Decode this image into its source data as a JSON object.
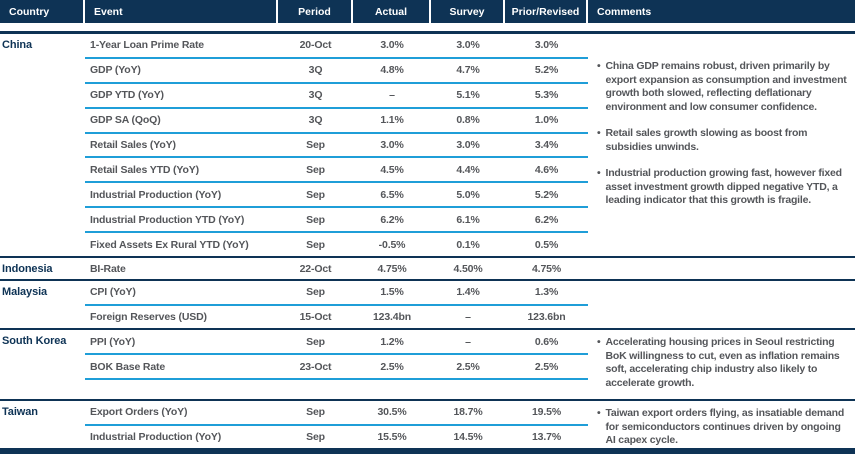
{
  "colors": {
    "navy": "#0e3355",
    "rule_blue": "#1f9ed8",
    "text_gray": "#54565a",
    "header_text": "#ffffff"
  },
  "bullet_glyph": "•",
  "table": {
    "columns": [
      {
        "key": "country",
        "label": "Country"
      },
      {
        "key": "event",
        "label": "Event"
      },
      {
        "key": "period",
        "label": "Period"
      },
      {
        "key": "actual",
        "label": "Actual"
      },
      {
        "key": "survey",
        "label": "Survey"
      },
      {
        "key": "prior",
        "label": "Prior/Revised"
      },
      {
        "key": "comments",
        "label": "Comments"
      }
    ],
    "sections": [
      {
        "country": "China",
        "trailing_rule": false,
        "rows": [
          {
            "event": "1-Year Loan Prime Rate",
            "period": "20-Oct",
            "actual": "3.0%",
            "survey": "3.0%",
            "prior": "3.0%"
          },
          {
            "event": "GDP (YoY)",
            "period": "3Q",
            "actual": "4.8%",
            "survey": "4.7%",
            "prior": "5.2%"
          },
          {
            "event": "GDP YTD (YoY)",
            "period": "3Q",
            "actual": "–",
            "survey": "5.1%",
            "prior": "5.3%"
          },
          {
            "event": "GDP SA (QoQ)",
            "period": "3Q",
            "actual": "1.1%",
            "survey": "0.8%",
            "prior": "1.0%"
          },
          {
            "event": "Retail Sales (YoY)",
            "period": "Sep",
            "actual": "3.0%",
            "survey": "3.0%",
            "prior": "3.4%"
          },
          {
            "event": "Retail Sales YTD (YoY)",
            "period": "Sep",
            "actual": "4.5%",
            "survey": "4.4%",
            "prior": "4.6%"
          },
          {
            "event": "Industrial Production (YoY)",
            "period": "Sep",
            "actual": "6.5%",
            "survey": "5.0%",
            "prior": "5.2%"
          },
          {
            "event": "Industrial Production YTD (YoY)",
            "period": "Sep",
            "actual": "6.2%",
            "survey": "6.1%",
            "prior": "6.2%"
          },
          {
            "event": "Fixed Assets Ex Rural YTD (YoY)",
            "period": "Sep",
            "actual": "-0.5%",
            "survey": "0.1%",
            "prior": "0.5%"
          }
        ],
        "comments": [
          "China GDP remains robust, driven primarily by export expansion as consumption and investment growth both slowed, reflecting deflationary environment and low consumer confidence.",
          "Retail sales growth slowing as boost from subsidies unwinds.",
          "Industrial production growing fast, however fixed asset investment growth dipped negative YTD, a leading indicator that this growth is fragile."
        ]
      },
      {
        "country": "Indonesia",
        "trailing_rule": false,
        "rows": [
          {
            "event": "BI-Rate",
            "period": "22-Oct",
            "actual": "4.75%",
            "survey": "4.50%",
            "prior": "4.75%"
          }
        ],
        "comments": []
      },
      {
        "country": "Malaysia",
        "trailing_rule": false,
        "rows": [
          {
            "event": "CPI (YoY)",
            "period": "Sep",
            "actual": "1.5%",
            "survey": "1.4%",
            "prior": "1.3%"
          },
          {
            "event": "Foreign Reserves (USD)",
            "period": "15-Oct",
            "actual": "123.4bn",
            "survey": "–",
            "prior": "123.6bn"
          }
        ],
        "comments": []
      },
      {
        "country": "South Korea",
        "trailing_rule": true,
        "rows": [
          {
            "event": "PPI (YoY)",
            "period": "Sep",
            "actual": "1.2%",
            "survey": "–",
            "prior": "0.6%"
          },
          {
            "event": "BOK Base Rate",
            "period": "23-Oct",
            "actual": "2.5%",
            "survey": "2.5%",
            "prior": "2.5%"
          }
        ],
        "comments": [
          "Accelerating housing prices in Seoul restricting BoK willingness to cut, even as inflation remains soft, accelerating chip industry also likely to accelerate growth."
        ]
      },
      {
        "country": "Taiwan",
        "trailing_rule": false,
        "rows": [
          {
            "event": "Export Orders (YoY)",
            "period": "Sep",
            "actual": "30.5%",
            "survey": "18.7%",
            "prior": "19.5%"
          },
          {
            "event": "Industrial Production (YoY)",
            "period": "Sep",
            "actual": "15.5%",
            "survey": "14.5%",
            "prior": "13.7%"
          }
        ],
        "comments": [
          "Taiwan export orders flying, as insatiable demand for semiconductors continues driven by ongoing AI capex cycle."
        ]
      }
    ]
  }
}
